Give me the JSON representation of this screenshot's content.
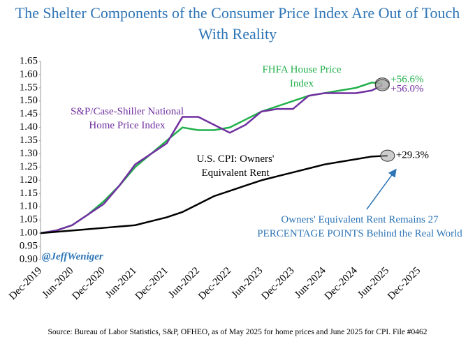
{
  "chart_data": {
    "type": "line",
    "title": "The Shelter Components of the Consumer Price Index Are Out of Touch With Reality",
    "x": [
      "2019-12",
      "2020-03",
      "2020-06",
      "2020-09",
      "2020-12",
      "2021-03",
      "2021-06",
      "2021-09",
      "2021-12",
      "2022-03",
      "2022-06",
      "2022-09",
      "2022-12",
      "2023-03",
      "2023-06",
      "2023-09",
      "2023-12",
      "2024-03",
      "2024-06",
      "2024-09",
      "2024-12",
      "2025-03",
      "2025-05",
      "2025-06"
    ],
    "xlim": [
      "2019-12",
      "2025-12"
    ],
    "xticks": [
      {
        "value": "2019-12",
        "label": "Dec-2019"
      },
      {
        "value": "2020-06",
        "label": "Jun-2020"
      },
      {
        "value": "2020-12",
        "label": "Dec-2020"
      },
      {
        "value": "2021-06",
        "label": "Jun-2021"
      },
      {
        "value": "2021-12",
        "label": "Dec-2021"
      },
      {
        "value": "2022-06",
        "label": "Jun-2022"
      },
      {
        "value": "2022-12",
        "label": "Dec-2022"
      },
      {
        "value": "2023-06",
        "label": "Jun-2023"
      },
      {
        "value": "2023-12",
        "label": "Dec-2023"
      },
      {
        "value": "2024-06",
        "label": "Jun-2024"
      },
      {
        "value": "2024-12",
        "label": "Dec-2024"
      },
      {
        "value": "2025-06",
        "label": "Jun-2025"
      },
      {
        "value": "2025-12",
        "label": "Dec-2025"
      }
    ],
    "ylim": [
      0.9,
      1.65
    ],
    "yticks": [
      1.65,
      {
        "value": 1.6,
        "label": "1.60"
      },
      1.55,
      {
        "value": 1.5,
        "label": "1.50"
      },
      1.45,
      {
        "value": 1.4,
        "label": "1.40"
      },
      1.35,
      {
        "value": 1.3,
        "label": "1.30"
      },
      1.25,
      {
        "value": 1.2,
        "label": "1.20"
      },
      1.15,
      {
        "value": 1.1,
        "label": "1.10"
      },
      1.05,
      {
        "value": 1.0,
        "label": "1.00"
      },
      0.95,
      {
        "value": 0.9,
        "label": "0.90"
      }
    ],
    "grid": false,
    "series": [
      {
        "name": "FHFA House Price Index",
        "color": "#22b04b",
        "values": [
          1.0,
          1.01,
          1.03,
          1.07,
          1.12,
          1.18,
          1.25,
          1.3,
          1.35,
          1.4,
          1.39,
          1.39,
          1.4,
          1.43,
          1.46,
          1.48,
          1.5,
          1.52,
          1.53,
          1.54,
          1.55,
          1.57,
          1.566,
          null
        ]
      },
      {
        "name": "S&P/Case-Shiller National Home Price Index",
        "color": "#7030a0",
        "values": [
          1.0,
          1.01,
          1.03,
          1.07,
          1.11,
          1.18,
          1.26,
          1.3,
          1.34,
          1.44,
          1.44,
          1.41,
          1.38,
          1.41,
          1.46,
          1.47,
          1.47,
          1.52,
          1.53,
          1.53,
          1.53,
          1.54,
          1.56,
          null
        ]
      },
      {
        "name": "U.S. CPI: Owners' Equivalent Rent",
        "color": "#000000",
        "values": [
          1.0,
          1.005,
          1.01,
          1.015,
          1.02,
          1.025,
          1.03,
          1.045,
          1.06,
          1.08,
          1.11,
          1.14,
          1.16,
          1.18,
          1.2,
          1.215,
          1.23,
          1.245,
          1.26,
          1.27,
          1.28,
          1.29,
          1.292,
          1.293
        ]
      }
    ],
    "end_labels": [
      "+56.6%",
      "+56.0%",
      "+29.3%"
    ],
    "annotations": {
      "handle": "@JeffWeniger",
      "note": "Owners' Equivalent Rent Remains 27 PERCENTAGE POINTS Behind the Real World"
    },
    "source": "Source: Bureau of Labor Statistics, S&P, OFHEO, as of May 2025 for home prices and June 2025 for CPI. File #0462"
  }
}
